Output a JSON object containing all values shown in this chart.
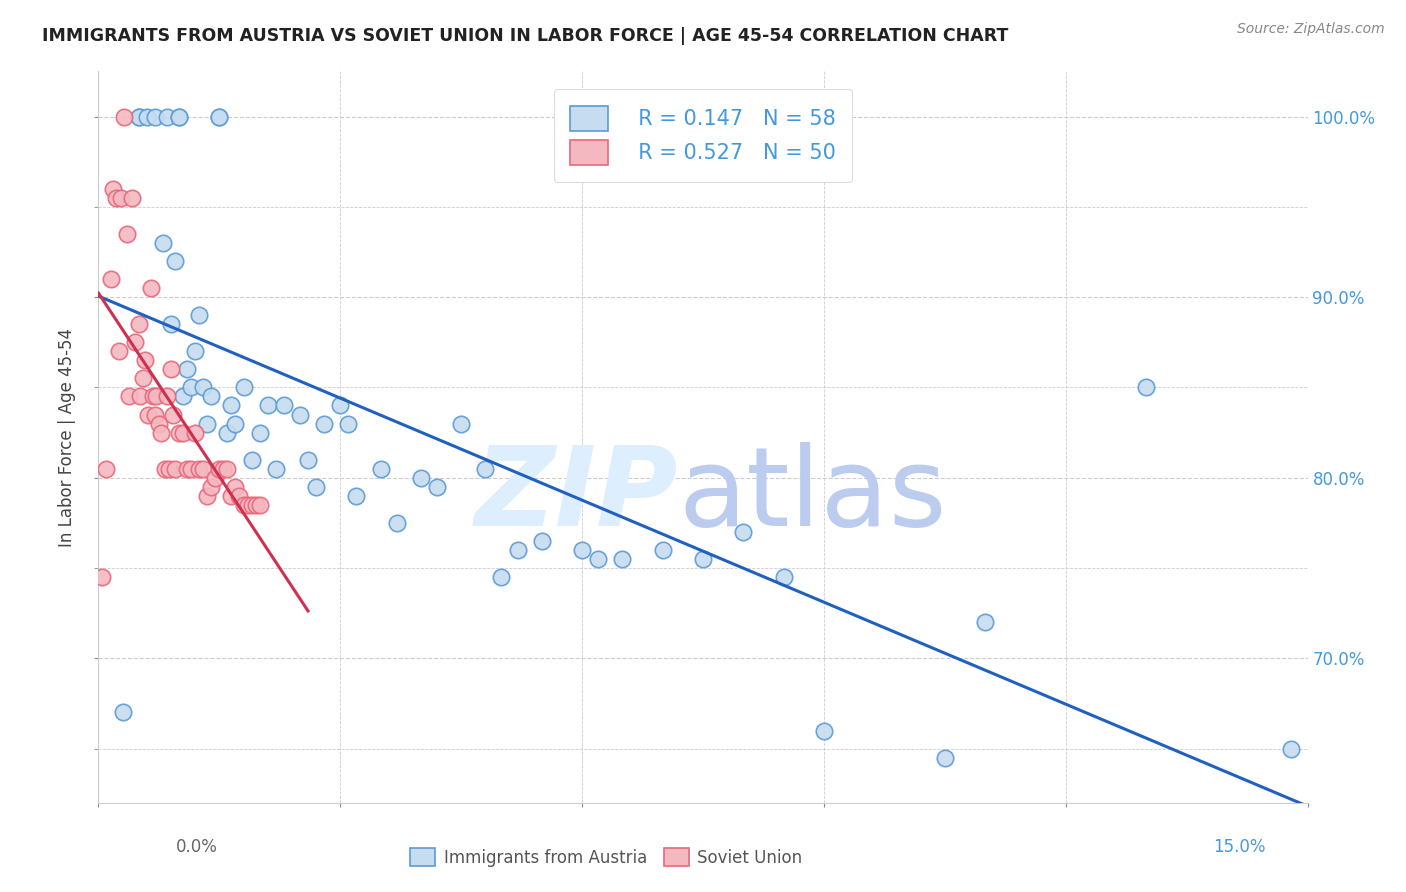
{
  "title": "IMMIGRANTS FROM AUSTRIA VS SOVIET UNION IN LABOR FORCE | AGE 45-54 CORRELATION CHART",
  "source": "Source: ZipAtlas.com",
  "ylabel": "In Labor Force | Age 45-54",
  "xlim": [
    0.0,
    15.0
  ],
  "ylim": [
    62.0,
    102.5
  ],
  "austria_R": 0.147,
  "austria_N": 58,
  "soviet_R": 0.527,
  "soviet_N": 50,
  "austria_face": "#c6dcf0",
  "austria_edge": "#5b9bd5",
  "soviet_face": "#f4b8c1",
  "soviet_edge": "#e8687a",
  "reg_austria_color": "#2060c0",
  "reg_soviet_color": "#d03050",
  "background_color": "#ffffff",
  "grid_color": "#cccccc",
  "austria_scatter_x": [
    0.3,
    0.5,
    0.5,
    0.6,
    0.7,
    0.8,
    0.85,
    0.9,
    0.95,
    1.0,
    1.0,
    1.05,
    1.1,
    1.15,
    1.2,
    1.25,
    1.3,
    1.35,
    1.4,
    1.5,
    1.5,
    1.6,
    1.65,
    1.7,
    1.8,
    1.9,
    2.0,
    2.1,
    2.2,
    2.3,
    2.5,
    2.6,
    2.7,
    2.8,
    3.0,
    3.1,
    3.2,
    3.5,
    3.7,
    4.0,
    4.2,
    4.5,
    4.8,
    5.0,
    5.2,
    5.5,
    6.0,
    6.2,
    6.5,
    7.0,
    7.5,
    8.0,
    8.5,
    9.0,
    10.5,
    11.0,
    13.0,
    14.8
  ],
  "austria_scatter_y": [
    67.0,
    100.0,
    100.0,
    100.0,
    100.0,
    93.0,
    100.0,
    88.5,
    92.0,
    100.0,
    100.0,
    84.5,
    86.0,
    85.0,
    87.0,
    89.0,
    85.0,
    83.0,
    84.5,
    100.0,
    100.0,
    82.5,
    84.0,
    83.0,
    85.0,
    81.0,
    82.5,
    84.0,
    80.5,
    84.0,
    83.5,
    81.0,
    79.5,
    83.0,
    84.0,
    83.0,
    79.0,
    80.5,
    77.5,
    80.0,
    79.5,
    83.0,
    80.5,
    74.5,
    76.0,
    76.5,
    76.0,
    75.5,
    75.5,
    76.0,
    75.5,
    77.0,
    74.5,
    66.0,
    64.5,
    72.0,
    85.0,
    65.0
  ],
  "soviet_scatter_x": [
    0.05,
    0.1,
    0.15,
    0.18,
    0.22,
    0.25,
    0.28,
    0.32,
    0.35,
    0.38,
    0.42,
    0.45,
    0.5,
    0.52,
    0.55,
    0.58,
    0.62,
    0.65,
    0.68,
    0.7,
    0.72,
    0.75,
    0.78,
    0.82,
    0.85,
    0.88,
    0.9,
    0.92,
    0.95,
    1.0,
    1.05,
    1.1,
    1.15,
    1.2,
    1.25,
    1.3,
    1.35,
    1.4,
    1.45,
    1.5,
    1.55,
    1.6,
    1.65,
    1.7,
    1.75,
    1.8,
    1.85,
    1.9,
    1.95,
    2.0
  ],
  "soviet_scatter_y": [
    74.5,
    80.5,
    91.0,
    96.0,
    95.5,
    87.0,
    95.5,
    100.0,
    93.5,
    84.5,
    95.5,
    87.5,
    88.5,
    84.5,
    85.5,
    86.5,
    83.5,
    90.5,
    84.5,
    83.5,
    84.5,
    83.0,
    82.5,
    80.5,
    84.5,
    80.5,
    86.0,
    83.5,
    80.5,
    82.5,
    82.5,
    80.5,
    80.5,
    82.5,
    80.5,
    80.5,
    79.0,
    79.5,
    80.0,
    80.5,
    80.5,
    80.5,
    79.0,
    79.5,
    79.0,
    78.5,
    78.5,
    78.5,
    78.5,
    78.5
  ],
  "watermark_zip": "ZIP",
  "watermark_atlas": "atlas"
}
